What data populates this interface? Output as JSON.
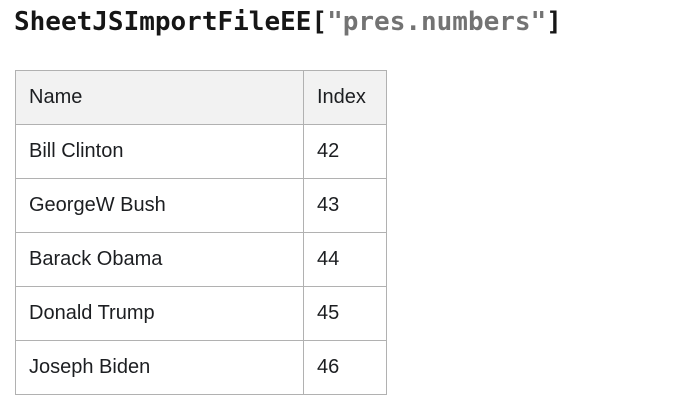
{
  "title": {
    "prefix": "SheetJSImportFileEE",
    "bracket_open": "[",
    "string": "\"pres.numbers\"",
    "bracket_close": "]"
  },
  "table": {
    "columns": [
      "Name",
      "Index"
    ],
    "rows": [
      {
        "name": "Bill Clinton",
        "index": "42"
      },
      {
        "name": "GeorgeW Bush",
        "index": "43"
      },
      {
        "name": "Barack Obama",
        "index": "44"
      },
      {
        "name": "Donald Trump",
        "index": "45"
      },
      {
        "name": "Joseph Biden",
        "index": "46"
      }
    ]
  },
  "colors": {
    "title_text": "#161616",
    "title_string": "#737373",
    "table_border": "#b1b1b1",
    "header_bg": "#f2f2f2",
    "cell_text": "#1c1e21"
  }
}
